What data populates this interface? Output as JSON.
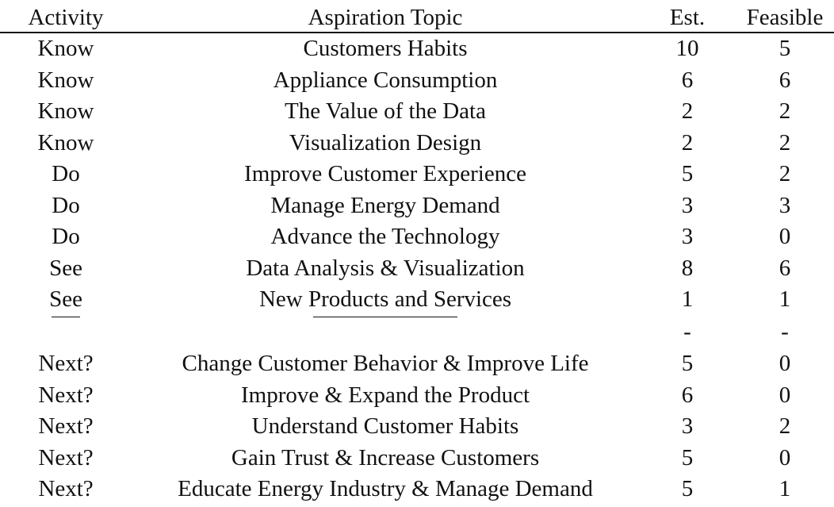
{
  "table": {
    "headers": [
      "Activity",
      "Aspiration Topic",
      "Est.",
      "Feasible"
    ],
    "rows": [
      [
        "Know",
        "Customers Habits",
        "10",
        "5"
      ],
      [
        "Know",
        "Appliance Consumption",
        "6",
        "6"
      ],
      [
        "Know",
        "The Value of the Data",
        "2",
        "2"
      ],
      [
        "Know",
        "Visualization Design",
        "2",
        "2"
      ],
      [
        "Do",
        "Improve Customer Experience",
        "5",
        "2"
      ],
      [
        "Do",
        "Manage Energy Demand",
        "3",
        "3"
      ],
      [
        "Do",
        "Advance the Technology",
        "3",
        "0"
      ],
      [
        "See",
        "Data Analysis & Visualization",
        "8",
        "6"
      ],
      [
        "See",
        "New Products and Services",
        "1",
        "1"
      ],
      [
        "—",
        "————",
        "-",
        "-"
      ],
      [
        "Next?",
        "Change Customer Behavior & Improve Life",
        "5",
        "0"
      ],
      [
        "Next?",
        "Improve & Expand the Product",
        "6",
        "0"
      ],
      [
        "Next?",
        "Understand Customer Habits",
        "3",
        "2"
      ],
      [
        "Next?",
        "Gain Trust & Increase Customers",
        "5",
        "0"
      ],
      [
        "Next?",
        "Educate Energy Industry & Manage Demand",
        "5",
        "1"
      ]
    ]
  }
}
